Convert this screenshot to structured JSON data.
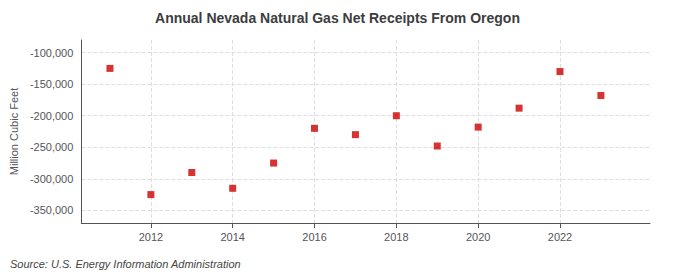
{
  "chart_data": {
    "type": "scatter",
    "title": "Annual Nevada Natural Gas Net Receipts From Oregon",
    "ylabel": "Million Cubic Feet",
    "annotations": [
      "Source: U.S. Energy Information Administration"
    ],
    "x": [
      2011,
      2012,
      2013,
      2014,
      2015,
      2016,
      2017,
      2018,
      2019,
      2020,
      2021,
      2022,
      2023
    ],
    "values": [
      -125000,
      -325000,
      -290000,
      -315000,
      -275000,
      -220000,
      -230000,
      -200000,
      -248000,
      -218000,
      -188000,
      -130000,
      -168000
    ],
    "color": "#cc0000",
    "marker": "square",
    "xlim": [
      2010.3,
      2024.2
    ],
    "xticks": [
      2012,
      2014,
      2016,
      2018,
      2020,
      2022
    ],
    "ylim": [
      -370000,
      -80000
    ],
    "yticks": [
      {
        "value": -100000,
        "label": "-100,000"
      },
      {
        "value": -150000,
        "label": "-150,000"
      },
      {
        "value": -200000,
        "label": "-200,000"
      },
      {
        "value": -250000,
        "label": "-250,000"
      },
      {
        "value": -300000,
        "label": "-300,000"
      },
      {
        "value": -350000,
        "label": "-350,000"
      }
    ],
    "grid": true
  }
}
